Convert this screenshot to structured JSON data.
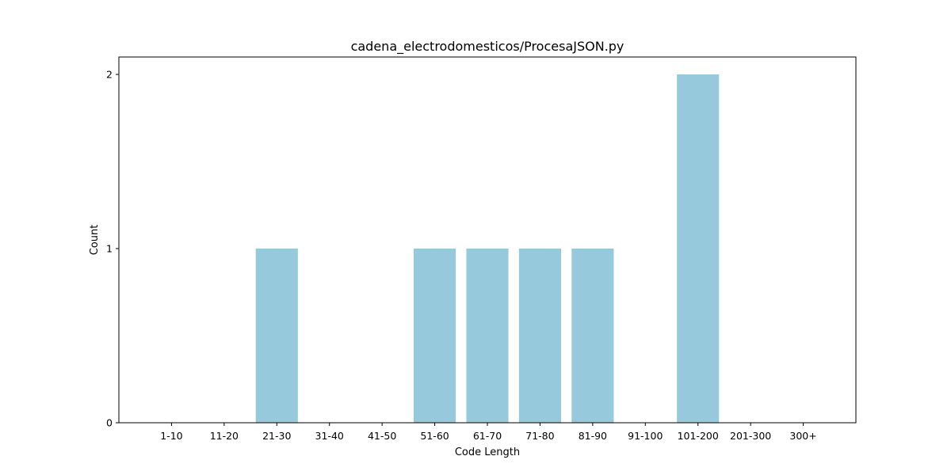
{
  "chart_data": {
    "type": "bar",
    "title": "cadena_electrodomesticos/ProcesaJSON.py",
    "xlabel": "Code Length",
    "ylabel": "Count",
    "categories": [
      "1-10",
      "11-20",
      "21-30",
      "31-40",
      "41-50",
      "51-60",
      "61-70",
      "71-80",
      "81-90",
      "91-100",
      "101-200",
      "201-300",
      "300+"
    ],
    "values": [
      0,
      0,
      1,
      0,
      0,
      1,
      1,
      1,
      1,
      0,
      2,
      0,
      0
    ],
    "yticks": [
      0,
      1,
      2
    ],
    "ylim": [
      0,
      2.1
    ],
    "grid": false,
    "bar_color": "#96c9dc"
  }
}
